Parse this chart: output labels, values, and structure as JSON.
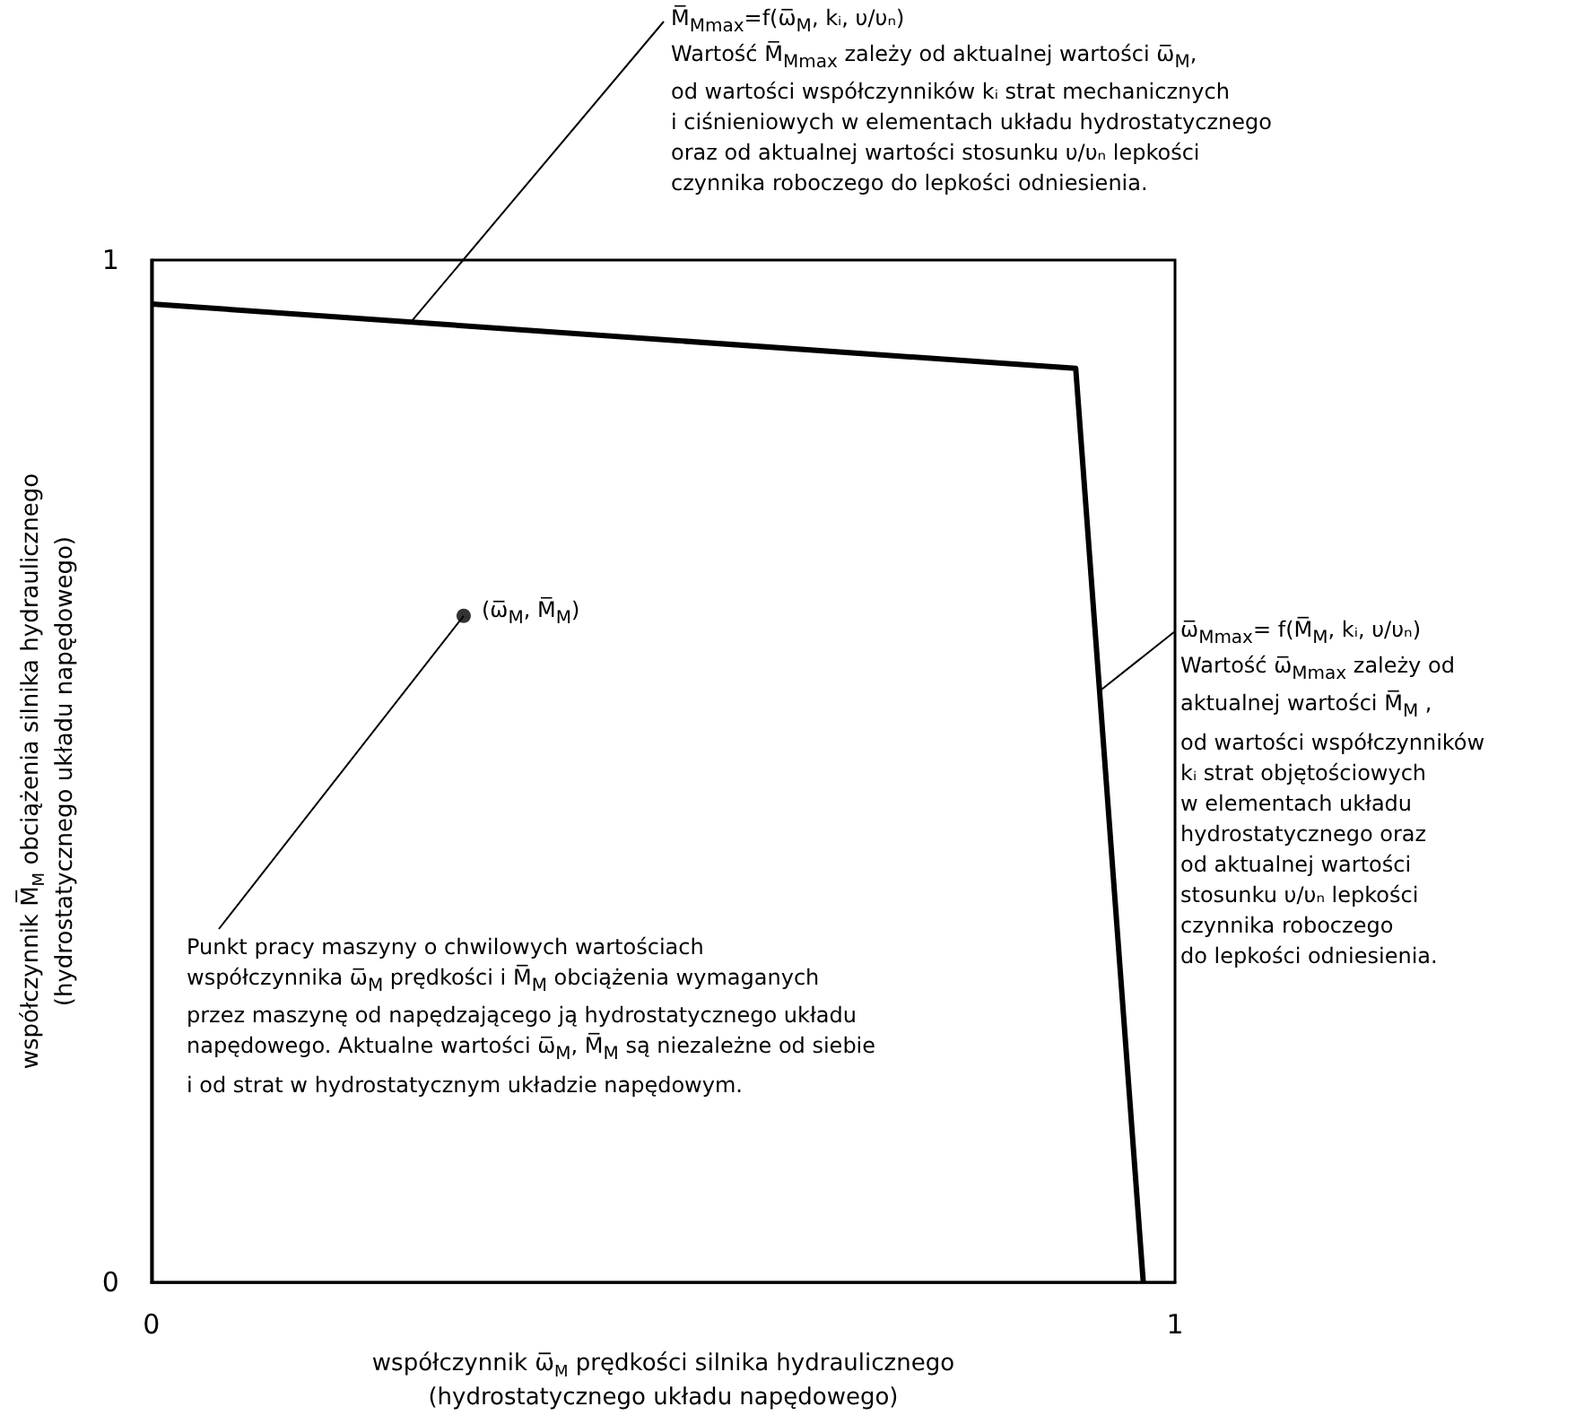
{
  "chart_data": {
    "type": "line",
    "xlabel": "współczynnik ω̅$_{M}$ prędkości silnika hydraulicznego\n(hydrostatycznego układu napędowego)",
    "ylabel": "współczynnik M̅$_{M}$ obciążenia silnika hydraulicznego\n(hydrostatycznego układu napędowego)",
    "x": [
      0,
      0.903,
      0.969
    ],
    "series": [
      {
        "color": "#000000",
        "values": [
          0.957,
          0.894,
          0
        ],
        "marker": "none"
      },
      {
        "type": "scatter",
        "color": "#000000",
        "x": [
          0.305
        ],
        "values": [
          0.652
        ],
        "marker": "circle"
      }
    ],
    "xlim": [
      0,
      1
    ],
    "ylim": [
      0,
      1
    ],
    "xticks": [
      0,
      1
    ],
    "yticks": [
      0,
      1
    ],
    "annotations": [
      {
        "text": "M̅$_{Mmax}$=f(ω̅$_{M}$, kᵢ, υ/υₙ)",
        "x": 0.254,
        "y": 0.94
      },
      "Wartość M̅$_{Mmax}$ zależy od aktualnej wartości ω̅$_{M}$,\nod wartości współczynników kᵢ strat mechanicznych\ni ciśnieniowych w elementach układu hydrostatycznego\noraz od aktualnej wartości stosunku υ/υₙ lepkości\nczynnika roboczego do lepkości odniesienia.",
      {
        "text": "ω̅$_{Mmax}$= f(M̅$_{M}$, kᵢ, υ/υₙ)",
        "x": 0.927,
        "y": 0.579
      },
      "Wartość ω̅$_{Mmax}$ zależy od\naktualnej wartości M̅$_{M}$ ,\nod wartości współczynników\nkᵢ strat objętościowych\nw elementach układu\nhydrostatycznego oraz\nod aktualnej wartości\nstosunku υ/υₙ lepkości\nczynnika roboczego\ndo lepkości odniesienia.",
      {
        "text": "(ω̅$_{M}$, M̅$_{M}$)",
        "x": 0.305,
        "y": 0.652
      },
      "Punkt pracy maszyny o chwilowych wartościach\nwspółczynnika ω̅$_{M}$ prędkości i M̅$_{M}$ obciążenia wymaganych\nprzez maszynę od napędzającego ją hydrostatycznego układu\nnapędowego. Aktualne wartości ω̅$_{M}$, M̅$_{M}$ są niezależne od siebie\ni od strat w hydrostatycznym układzie napędowym."
    ]
  }
}
